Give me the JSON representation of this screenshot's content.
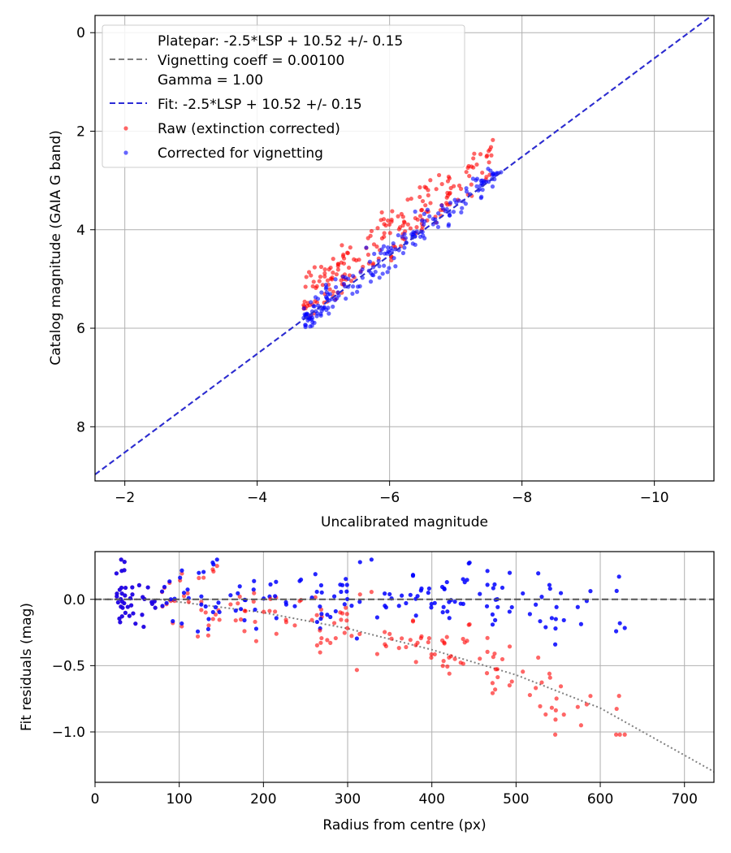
{
  "chart_data": [
    {
      "type": "scatter",
      "xlabel": "Uncalibrated magnitude",
      "ylabel": "Catalog magnitude (GAIA G band)",
      "xlim": [
        -1.55,
        -10.9
      ],
      "ylim": [
        9.1,
        -0.35
      ],
      "xticks": [
        -2,
        -4,
        -6,
        -8,
        -10
      ],
      "xtick_labels": [
        "−2",
        "−4",
        "−6",
        "−8",
        "−10"
      ],
      "yticks": [
        0,
        2,
        4,
        6,
        8
      ],
      "ytick_labels": [
        "0",
        "2",
        "4",
        "6",
        "8"
      ],
      "grid": true,
      "legend_position": "upper-left",
      "legend": [
        {
          "kind": "dashed-line",
          "color": "#808080",
          "lines": [
            "Platepar: -2.5*LSP + 10.52 +/- 0.15",
            "Vignetting coeff = 0.00100",
            "Gamma = 1.00"
          ]
        },
        {
          "kind": "dashed-line",
          "color": "#2b2bd6",
          "lines": [
            "Fit: -2.5*LSP + 10.52 +/- 0.15"
          ]
        },
        {
          "kind": "marker",
          "color": "#ff0000",
          "lines": [
            "Raw (extinction corrected)"
          ]
        },
        {
          "kind": "marker",
          "color": "#0000ff",
          "lines": [
            "Corrected for vignetting"
          ]
        }
      ],
      "fit_line": {
        "name": "Fit: -2.5*LSP + 10.52 +/- 0.15",
        "slope": 1.0,
        "intercept": 10.52,
        "color": "#2b2bd6"
      },
      "platepar_line": {
        "name": "Platepar",
        "slope": 1.0,
        "intercept": 10.52,
        "color": "#808080"
      },
      "series": [
        {
          "name": "Raw (extinction corrected)",
          "color": "#ff0000",
          "n_points": 200,
          "x_range": [
            -4.7,
            -7.6
          ],
          "y_at_x": "x + 10.52 - offset",
          "offset_range": [
            0.0,
            0.85
          ]
        },
        {
          "name": "Corrected for vignetting",
          "color": "#0000ff",
          "n_points": 200,
          "x_range": [
            -4.7,
            -7.7
          ],
          "y_at_x": "x + 10.52",
          "scatter": 0.15
        }
      ]
    },
    {
      "type": "scatter",
      "xlabel": "Radius from centre (px)",
      "ylabel": "Fit residuals (mag)",
      "xlim": [
        0,
        735
      ],
      "ylim": [
        -1.38,
        0.36
      ],
      "xticks": [
        0,
        100,
        200,
        300,
        400,
        500,
        600,
        700
      ],
      "xtick_labels": [
        "0",
        "100",
        "200",
        "300",
        "400",
        "500",
        "600",
        "700"
      ],
      "yticks": [
        0.0,
        -0.5,
        -1.0
      ],
      "ytick_labels": [
        "0.0",
        "−0.5",
        "−1.0"
      ],
      "grid": true,
      "zero_line": {
        "y": 0.0,
        "color": "#555555",
        "style": "dashed"
      },
      "vignetting_curve": {
        "color": "#808080",
        "style": "dotted",
        "x": [
          0,
          75,
          200,
          300,
          400,
          500,
          600,
          735
        ],
        "y": [
          0.0,
          0.0,
          -0.1,
          -0.22,
          -0.38,
          -0.57,
          -0.82,
          -1.3
        ]
      },
      "series": [
        {
          "name": "Raw (extinction corrected)",
          "color": "#ff0000",
          "n_points": 200,
          "x_range": [
            25,
            630
          ],
          "y_range": [
            -1.02,
            0.3
          ]
        },
        {
          "name": "Corrected for vignetting",
          "color": "#0000ff",
          "n_points": 200,
          "x_range": [
            25,
            630
          ],
          "y_range": [
            -0.34,
            0.3
          ]
        }
      ]
    }
  ]
}
